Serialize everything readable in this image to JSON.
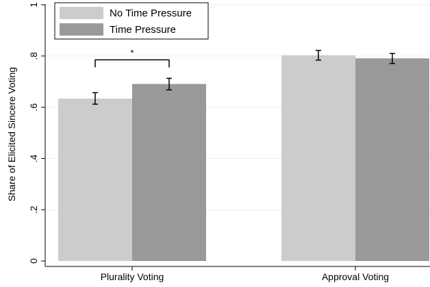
{
  "chart_data": {
    "type": "bar",
    "title": "",
    "xlabel": "",
    "ylabel": "Share of Elicited Sincere Voting",
    "ylim": [
      0,
      1
    ],
    "yticks": [
      0,
      0.2,
      0.4,
      0.6,
      0.8,
      1
    ],
    "ytick_labels": [
      "0",
      ".2",
      ".4",
      ".6",
      ".8",
      "1"
    ],
    "grid": true,
    "legend_position": "top-left",
    "categories": [
      "Plurality Voting",
      "Approval Voting"
    ],
    "series": [
      {
        "name": "No Time Pressure",
        "color": "#cccccc",
        "values": [
          0.634,
          0.803
        ],
        "ci_low": [
          0.612,
          0.784
        ],
        "ci_high": [
          0.657,
          0.822
        ]
      },
      {
        "name": "Time Pressure",
        "color": "#999999",
        "values": [
          0.691,
          0.791
        ],
        "ci_low": [
          0.668,
          0.771
        ],
        "ci_high": [
          0.713,
          0.81
        ]
      }
    ],
    "annotations": [
      {
        "text": "*",
        "category": "Plurality Voting",
        "between_series": [
          0,
          1
        ],
        "y": 0.785
      }
    ]
  }
}
